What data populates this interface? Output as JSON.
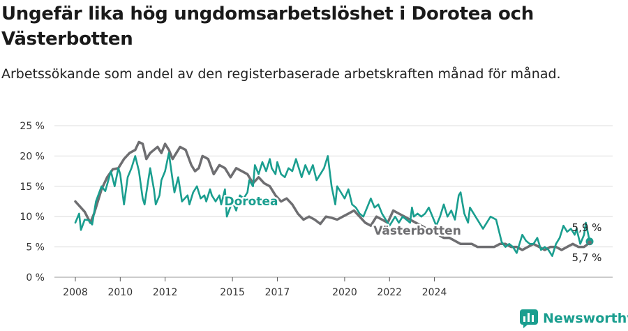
{
  "title": "Ungefär lika hög ungdomsarbetslöshet i Dorotea och Västerbotten",
  "subtitle": "Arbetssökande som andel av den registerbaserade arbetskraften månad för månad.",
  "brand": "Newsworthy",
  "chart_data": {
    "type": "line",
    "title": "Ungefär lika hög ungdomsarbetslöshet i Dorotea och Västerbotten",
    "subtitle": "Arbetssökande som andel av den registerbaserade arbetskraften månad för månad.",
    "xlabel": "",
    "ylabel": "",
    "x_ticks": [
      "2008",
      "2010",
      "2012",
      "2015",
      "2017",
      "2020",
      "2022",
      "2024"
    ],
    "y_ticks": [
      "0 %",
      "5 %",
      "10 %",
      "15 %",
      "20 %",
      "25 %"
    ],
    "ylim": [
      0,
      25
    ],
    "grid": true,
    "legend": "inline labels",
    "series": [
      {
        "name": "Dorotea",
        "color": "#1a9e8f",
        "points": [
          [
            "2008-01",
            9.0
          ],
          [
            "2008-03",
            10.5
          ],
          [
            "2008-04",
            7.8
          ],
          [
            "2008-06",
            9.5
          ],
          [
            "2008-08",
            9.4
          ],
          [
            "2008-10",
            8.7
          ],
          [
            "2008-12",
            12.5
          ],
          [
            "2009-03",
            15.0
          ],
          [
            "2009-05",
            14.2
          ],
          [
            "2009-08",
            17.5
          ],
          [
            "2009-10",
            15.0
          ],
          [
            "2009-12",
            18.0
          ],
          [
            "2010-01",
            17.0
          ],
          [
            "2010-03",
            12.0
          ],
          [
            "2010-05",
            16.5
          ],
          [
            "2010-07",
            18.0
          ],
          [
            "2010-09",
            20.0
          ],
          [
            "2010-11",
            17.5
          ],
          [
            "2011-01",
            13.0
          ],
          [
            "2011-02",
            12.0
          ],
          [
            "2011-04",
            16.0
          ],
          [
            "2011-05",
            18.0
          ],
          [
            "2011-07",
            14.5
          ],
          [
            "2011-08",
            12.0
          ],
          [
            "2011-10",
            13.5
          ],
          [
            "2011-11",
            16.0
          ],
          [
            "2012-01",
            17.5
          ],
          [
            "2012-03",
            20.5
          ],
          [
            "2012-05",
            16.0
          ],
          [
            "2012-06",
            14.0
          ],
          [
            "2012-08",
            16.5
          ],
          [
            "2012-10",
            12.5
          ],
          [
            "2013-01",
            13.5
          ],
          [
            "2013-02",
            12.0
          ],
          [
            "2013-04",
            14.0
          ],
          [
            "2013-06",
            15.0
          ],
          [
            "2013-08",
            13.0
          ],
          [
            "2013-10",
            13.5
          ],
          [
            "2013-11",
            12.5
          ],
          [
            "2014-01",
            14.5
          ],
          [
            "2014-02",
            13.5
          ],
          [
            "2014-04",
            12.5
          ],
          [
            "2014-06",
            13.5
          ],
          [
            "2014-07",
            12.0
          ],
          [
            "2014-09",
            14.5
          ],
          [
            "2014-10",
            10.0
          ],
          [
            "2015-01",
            12.5
          ],
          [
            "2015-03",
            11.0
          ],
          [
            "2015-05",
            13.5
          ],
          [
            "2015-07",
            13.0
          ],
          [
            "2015-09",
            14.0
          ],
          [
            "2015-10",
            16.0
          ],
          [
            "2015-12",
            15.0
          ],
          [
            "2016-01",
            18.5
          ],
          [
            "2016-03",
            17.0
          ],
          [
            "2016-05",
            19.0
          ],
          [
            "2016-07",
            17.5
          ],
          [
            "2016-09",
            19.5
          ],
          [
            "2016-10",
            18.0
          ],
          [
            "2016-12",
            17.0
          ],
          [
            "2017-01",
            19.0
          ],
          [
            "2017-03",
            17.0
          ],
          [
            "2017-05",
            16.5
          ],
          [
            "2017-07",
            18.0
          ],
          [
            "2017-09",
            17.5
          ],
          [
            "2017-11",
            19.5
          ],
          [
            "2018-02",
            16.5
          ],
          [
            "2018-04",
            18.5
          ],
          [
            "2018-06",
            17.0
          ],
          [
            "2018-08",
            18.5
          ],
          [
            "2018-10",
            16.0
          ],
          [
            "2018-12",
            17.0
          ],
          [
            "2019-02",
            18.0
          ],
          [
            "2019-04",
            20.0
          ],
          [
            "2019-06",
            15.0
          ],
          [
            "2019-08",
            12.0
          ],
          [
            "2019-09",
            15.0
          ],
          [
            "2019-11",
            14.0
          ],
          [
            "2020-01",
            13.0
          ],
          [
            "2020-03",
            14.5
          ],
          [
            "2020-05",
            12.0
          ],
          [
            "2020-07",
            11.5
          ],
          [
            "2020-09",
            10.5
          ],
          [
            "2020-11",
            10.0
          ],
          [
            "2021-01",
            11.5
          ],
          [
            "2021-03",
            13.0
          ],
          [
            "2021-05",
            11.5
          ],
          [
            "2021-07",
            12.0
          ],
          [
            "2021-09",
            10.5
          ],
          [
            "2022-01",
            8.5
          ],
          [
            "2022-02",
            9.0
          ],
          [
            "2022-04",
            10.0
          ],
          [
            "2022-06",
            9.0
          ],
          [
            "2022-08",
            10.0
          ],
          [
            "2022-10",
            9.5
          ],
          [
            "2022-12",
            9.0
          ],
          [
            "2023-01",
            11.5
          ],
          [
            "2023-02",
            10.0
          ],
          [
            "2023-04",
            10.5
          ],
          [
            "2023-06",
            10.0
          ],
          [
            "2023-08",
            10.5
          ],
          [
            "2023-10",
            11.5
          ],
          [
            "2024-02",
            8.5
          ],
          [
            "2024-04",
            10.0
          ],
          [
            "2024-06",
            12.0
          ],
          [
            "2024-08",
            10.0
          ],
          [
            "2024-10",
            11.0
          ],
          [
            "2024-12",
            9.5
          ],
          [
            "2025-02",
            13.5
          ],
          [
            "2025-03",
            14.0
          ],
          [
            "2025-05",
            10.5
          ],
          [
            "2025-07",
            9.0
          ],
          [
            "2025-08",
            11.5
          ],
          [
            "2026-01",
            9.0
          ],
          [
            "2026-03",
            8.0
          ],
          [
            "2026-05",
            9.0
          ],
          [
            "2026-07",
            10.0
          ],
          [
            "2026-10",
            9.5
          ],
          [
            "2027-01",
            5.8
          ],
          [
            "2027-03",
            5.0
          ],
          [
            "2027-05",
            5.5
          ],
          [
            "2027-07",
            5.0
          ],
          [
            "2027-09",
            4.0
          ],
          [
            "2027-12",
            7.0
          ],
          [
            "2028-02",
            6.0
          ],
          [
            "2028-04",
            5.5
          ],
          [
            "2028-06",
            5.5
          ],
          [
            "2028-08",
            6.5
          ],
          [
            "2028-10",
            4.5
          ],
          [
            "2028-12",
            5.0
          ],
          [
            "2029-02",
            4.5
          ],
          [
            "2029-04",
            3.5
          ],
          [
            "2029-06",
            5.5
          ],
          [
            "2029-08",
            6.5
          ],
          [
            "2029-10",
            8.5
          ],
          [
            "2029-12",
            7.5
          ],
          [
            "2030-02",
            8.0
          ],
          [
            "2030-04",
            7.0
          ],
          [
            "2030-05",
            8.0
          ],
          [
            "2030-07",
            5.5
          ],
          [
            "2030-09",
            7.0
          ],
          [
            "2030-10",
            9.0
          ],
          [
            "2030-12",
            5.9
          ]
        ]
      },
      {
        "name": "Västerbotten",
        "color": "#6e6e71",
        "points": [
          [
            "2008-01",
            12.5
          ],
          [
            "2008-06",
            10.8
          ],
          [
            "2008-09",
            9.0
          ],
          [
            "2008-11",
            10.5
          ],
          [
            "2009-03",
            14.5
          ],
          [
            "2009-06",
            16.5
          ],
          [
            "2009-09",
            17.8
          ],
          [
            "2009-12",
            18.0
          ],
          [
            "2010-03",
            19.5
          ],
          [
            "2010-06",
            20.5
          ],
          [
            "2010-09",
            21.0
          ],
          [
            "2010-11",
            22.3
          ],
          [
            "2011-01",
            22.0
          ],
          [
            "2011-03",
            19.5
          ],
          [
            "2011-05",
            20.5
          ],
          [
            "2011-07",
            21.0
          ],
          [
            "2011-09",
            21.5
          ],
          [
            "2011-11",
            20.5
          ],
          [
            "2012-01",
            22.0
          ],
          [
            "2012-03",
            21.0
          ],
          [
            "2012-05",
            19.5
          ],
          [
            "2012-07",
            20.5
          ],
          [
            "2012-09",
            21.5
          ],
          [
            "2012-12",
            21.0
          ],
          [
            "2013-03",
            18.5
          ],
          [
            "2013-05",
            17.5
          ],
          [
            "2013-07",
            18.0
          ],
          [
            "2013-09",
            20.0
          ],
          [
            "2013-12",
            19.5
          ],
          [
            "2014-03",
            17.0
          ],
          [
            "2014-06",
            18.5
          ],
          [
            "2014-09",
            18.0
          ],
          [
            "2014-12",
            16.5
          ],
          [
            "2015-03",
            18.0
          ],
          [
            "2015-06",
            17.5
          ],
          [
            "2015-09",
            17.0
          ],
          [
            "2015-12",
            15.5
          ],
          [
            "2016-03",
            16.5
          ],
          [
            "2016-06",
            15.5
          ],
          [
            "2016-09",
            15.0
          ],
          [
            "2016-12",
            13.5
          ],
          [
            "2017-03",
            12.5
          ],
          [
            "2017-06",
            13.0
          ],
          [
            "2017-09",
            12.0
          ],
          [
            "2017-12",
            10.5
          ],
          [
            "2018-03",
            9.5
          ],
          [
            "2018-06",
            10.0
          ],
          [
            "2018-09",
            9.5
          ],
          [
            "2018-12",
            8.8
          ],
          [
            "2019-03",
            10.0
          ],
          [
            "2019-06",
            9.8
          ],
          [
            "2019-09",
            9.5
          ],
          [
            "2019-12",
            10.0
          ],
          [
            "2020-03",
            10.5
          ],
          [
            "2020-06",
            11.0
          ],
          [
            "2020-09",
            10.0
          ],
          [
            "2020-12",
            9.0
          ],
          [
            "2021-03",
            8.5
          ],
          [
            "2021-06",
            10.0
          ],
          [
            "2021-09",
            9.5
          ],
          [
            "2021-12",
            9.0
          ],
          [
            "2022-03",
            11.0
          ],
          [
            "2022-06",
            10.5
          ],
          [
            "2022-09",
            10.0
          ],
          [
            "2022-12",
            9.5
          ],
          [
            "2023-03",
            9.0
          ],
          [
            "2023-06",
            8.5
          ],
          [
            "2023-09",
            8.0
          ],
          [
            "2023-12",
            7.5
          ],
          [
            "2024-03",
            7.0
          ],
          [
            "2024-06",
            6.5
          ],
          [
            "2024-09",
            6.5
          ],
          [
            "2024-12",
            6.0
          ],
          [
            "2025-03",
            5.5
          ],
          [
            "2025-06",
            5.5
          ],
          [
            "2025-09",
            5.5
          ],
          [
            "2025-12",
            5.0
          ],
          [
            "2026-03",
            5.0
          ],
          [
            "2026-06",
            5.0
          ],
          [
            "2026-09",
            5.0
          ],
          [
            "2026-12",
            5.5
          ],
          [
            "2027-03",
            5.5
          ],
          [
            "2027-06",
            5.0
          ],
          [
            "2027-09",
            5.0
          ],
          [
            "2027-12",
            4.5
          ],
          [
            "2028-03",
            5.0
          ],
          [
            "2028-06",
            5.5
          ],
          [
            "2028-09",
            5.0
          ],
          [
            "2028-12",
            4.5
          ],
          [
            "2029-03",
            5.0
          ],
          [
            "2029-06",
            5.0
          ],
          [
            "2029-09",
            4.5
          ],
          [
            "2029-12",
            5.0
          ],
          [
            "2030-03",
            5.5
          ],
          [
            "2030-06",
            5.0
          ],
          [
            "2030-09",
            5.0
          ],
          [
            "2030-12",
            5.7
          ]
        ]
      }
    ],
    "annotations": [
      {
        "text": "Dorotea",
        "series": "Dorotea"
      },
      {
        "text": "Västerbotten",
        "series": "Västerbotten"
      },
      {
        "text": "5,9 %",
        "series": "Dorotea"
      },
      {
        "text": "5,7 %",
        "series": "Västerbotten"
      }
    ]
  }
}
